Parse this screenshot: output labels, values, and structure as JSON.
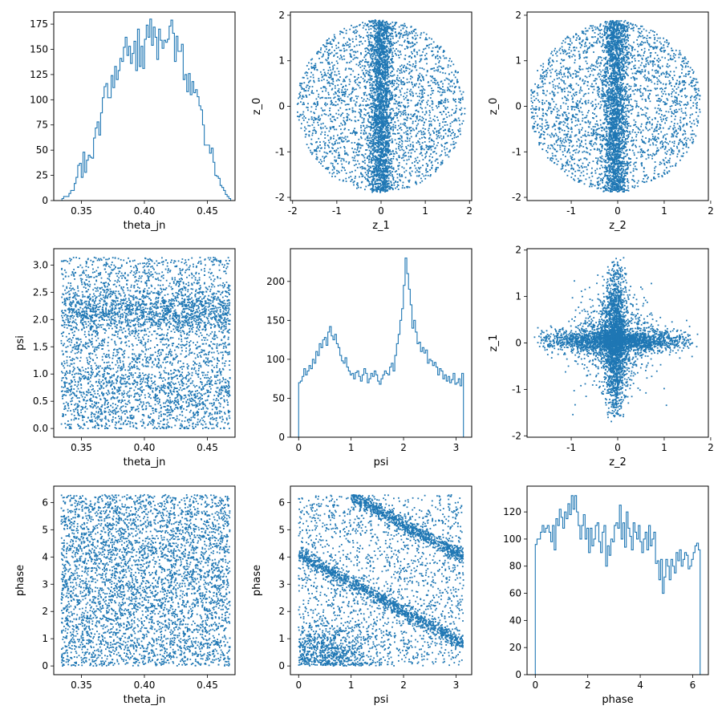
{
  "chart_data": [
    {
      "type": "histogram",
      "xlabel": "theta_jn",
      "ylabel": "",
      "xlim": [
        0.328,
        0.472
      ],
      "ylim": [
        0,
        187
      ],
      "xticks": [
        0.35,
        0.4,
        0.45
      ],
      "yticks": [
        0,
        25,
        50,
        75,
        100,
        125,
        150,
        175
      ],
      "bin_range": [
        0.3345,
        0.4685
      ],
      "counts": [
        2,
        4,
        4,
        4,
        7,
        10,
        10,
        17,
        23,
        35,
        37,
        23,
        48,
        28,
        40,
        45,
        43,
        42,
        62,
        72,
        78,
        65,
        87,
        102,
        113,
        116,
        102,
        102,
        124,
        112,
        133,
        120,
        129,
        141,
        138,
        152,
        162,
        144,
        153,
        136,
        146,
        158,
        129,
        170,
        133,
        153,
        131,
        160,
        174,
        162,
        180,
        154,
        172,
        162,
        140,
        170,
        159,
        151,
        159,
        157,
        160,
        173,
        179,
        166,
        138,
        163,
        148,
        148,
        155,
        120,
        125,
        108,
        126,
        105,
        118,
        107,
        110,
        103,
        94,
        90,
        75,
        55,
        55,
        55,
        47,
        52,
        38,
        25,
        24,
        22,
        15,
        13,
        10,
        6,
        4,
        2
      ]
    },
    {
      "type": "scatter",
      "xlabel": "z_1",
      "ylabel": "z_0",
      "xlim": [
        -2.05,
        2.05
      ],
      "ylim": [
        -2.07,
        2.07
      ],
      "xticks": [
        -2,
        -1,
        0,
        1,
        2
      ],
      "yticks": [
        -2,
        -1,
        0,
        1,
        2
      ],
      "shape": "elliptical disk radius ~1.9 with dense vertical core near x=0",
      "n_points": 4500,
      "seed": 11
    },
    {
      "type": "scatter",
      "xlabel": "z_2",
      "ylabel": "z_0",
      "xlim": [
        -1.95,
        1.95
      ],
      "ylim": [
        -2.07,
        2.07
      ],
      "xticks": [
        -1,
        0,
        1,
        2
      ],
      "yticks": [
        -2,
        -1,
        0,
        1,
        2
      ],
      "shape": "elliptical disk radius ~1.85 with dense vertical core near x=-0.05",
      "n_points": 4500,
      "seed": 23
    },
    {
      "type": "scatter",
      "xlabel": "theta_jn",
      "ylabel": "psi",
      "xlim": [
        0.328,
        0.472
      ],
      "ylim": [
        -0.16,
        3.3
      ],
      "xticks": [
        0.35,
        0.4,
        0.45
      ],
      "yticks": [
        0.0,
        0.5,
        1.0,
        1.5,
        2.0,
        2.5,
        3.0
      ],
      "shape": "uniform band theta 0.334-0.468, psi 0-3.14, denser near psi 2.15 and 0.6",
      "n_points": 4500,
      "seed": 37
    },
    {
      "type": "histogram",
      "xlabel": "psi",
      "ylabel": "",
      "xlim": [
        -0.157,
        3.299
      ],
      "ylim": [
        0,
        242
      ],
      "xticks": [
        0,
        1,
        2,
        3
      ],
      "yticks": [
        0,
        50,
        100,
        150,
        200
      ],
      "bin_range": [
        0,
        3.1416
      ],
      "counts": [
        70,
        72,
        78,
        88,
        80,
        85,
        92,
        88,
        100,
        95,
        110,
        105,
        120,
        115,
        125,
        128,
        118,
        135,
        142,
        130,
        125,
        132,
        120,
        115,
        105,
        98,
        95,
        102,
        90,
        85,
        80,
        82,
        75,
        83,
        85,
        78,
        72,
        80,
        88,
        82,
        70,
        75,
        82,
        78,
        85,
        80,
        72,
        68,
        75,
        80,
        85,
        82,
        80,
        90,
        95,
        85,
        105,
        120,
        132,
        150,
        165,
        195,
        230,
        210,
        190,
        170,
        140,
        150,
        135,
        120,
        122,
        110,
        115,
        108,
        112,
        95,
        100,
        98,
        92,
        96,
        90,
        80,
        88,
        85,
        75,
        80,
        72,
        78,
        70,
        74,
        82,
        68,
        70,
        75,
        66,
        82
      ]
    },
    {
      "type": "scatter",
      "xlabel": "z_2",
      "ylabel": "z_1",
      "xlim": [
        -1.95,
        1.95
      ],
      "ylim": [
        -2.03,
        2.03
      ],
      "xticks": [
        -1,
        0,
        1,
        2
      ],
      "yticks": [
        -2,
        -1,
        0,
        1,
        2
      ],
      "shape": "four-pointed star centred at (-0.05, 0.05) with horizontal and vertical arms",
      "n_points": 4500,
      "seed": 53
    },
    {
      "type": "scatter",
      "xlabel": "theta_jn",
      "ylabel": "phase",
      "xlim": [
        0.328,
        0.472
      ],
      "ylim": [
        -0.32,
        6.6
      ],
      "xticks": [
        0.35,
        0.4,
        0.45
      ],
      "yticks": [
        0,
        1,
        2,
        3,
        4,
        5,
        6
      ],
      "shape": "uniform band theta 0.334-0.468, phase 0-6.28",
      "n_points": 4500,
      "seed": 71
    },
    {
      "type": "scatter",
      "xlabel": "psi",
      "ylabel": "phase",
      "xlim": [
        -0.157,
        3.299
      ],
      "ylim": [
        -0.32,
        6.6
      ],
      "xticks": [
        0,
        1,
        2,
        3
      ],
      "yticks": [
        0,
        1,
        2,
        3,
        4,
        5,
        6
      ],
      "shape": "uniform background plus diagonal bands: phase = 4.1 - 1.05*psi and phase = 7.3 - 1.05*psi, dense cluster near psi 0.6 phase 0.5",
      "n_points": 4500,
      "seed": 89
    },
    {
      "type": "histogram",
      "xlabel": "phase",
      "ylabel": "",
      "xlim": [
        -0.314,
        6.597
      ],
      "ylim": [
        0,
        139
      ],
      "xticks": [
        0,
        2,
        4,
        6
      ],
      "yticks": [
        0,
        20,
        40,
        60,
        80,
        100,
        120
      ],
      "bin_range": [
        0,
        6.2832
      ],
      "counts": [
        96,
        100,
        100,
        105,
        110,
        105,
        108,
        110,
        105,
        98,
        110,
        92,
        115,
        110,
        122,
        116,
        108,
        120,
        115,
        126,
        118,
        132,
        122,
        132,
        120,
        110,
        100,
        110,
        118,
        100,
        108,
        90,
        108,
        95,
        100,
        110,
        112,
        98,
        90,
        105,
        110,
        80,
        95,
        88,
        100,
        98,
        110,
        112,
        108,
        125,
        100,
        112,
        94,
        120,
        108,
        102,
        92,
        112,
        105,
        100,
        110,
        98,
        90,
        100,
        105,
        92,
        110,
        95,
        100,
        105,
        82,
        84,
        70,
        85,
        60,
        72,
        85,
        80,
        70,
        85,
        80,
        75,
        90,
        84,
        92,
        80,
        85,
        90,
        88,
        78,
        80,
        85,
        90,
        95,
        97,
        92
      ]
    }
  ]
}
